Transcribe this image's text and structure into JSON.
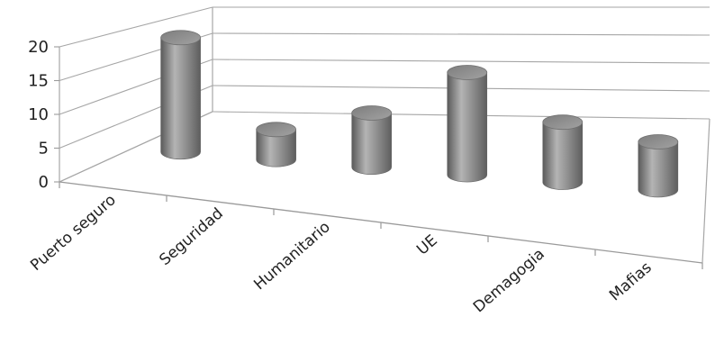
{
  "chart_data": {
    "type": "bar",
    "style": "3d-cylinder",
    "categories": [
      "Puerto seguro",
      "Seguridad",
      "Humanitario",
      "UE",
      "Demagogia",
      "Mafias"
    ],
    "values": [
      19,
      5,
      9,
      17,
      10,
      8
    ],
    "ylim": [
      0,
      20
    ],
    "yticks": [
      0,
      5,
      10,
      15,
      20
    ],
    "grid": true,
    "legend": "none",
    "bar_color": "#8c8c8c",
    "title": "",
    "xlabel": "",
    "ylabel": ""
  }
}
